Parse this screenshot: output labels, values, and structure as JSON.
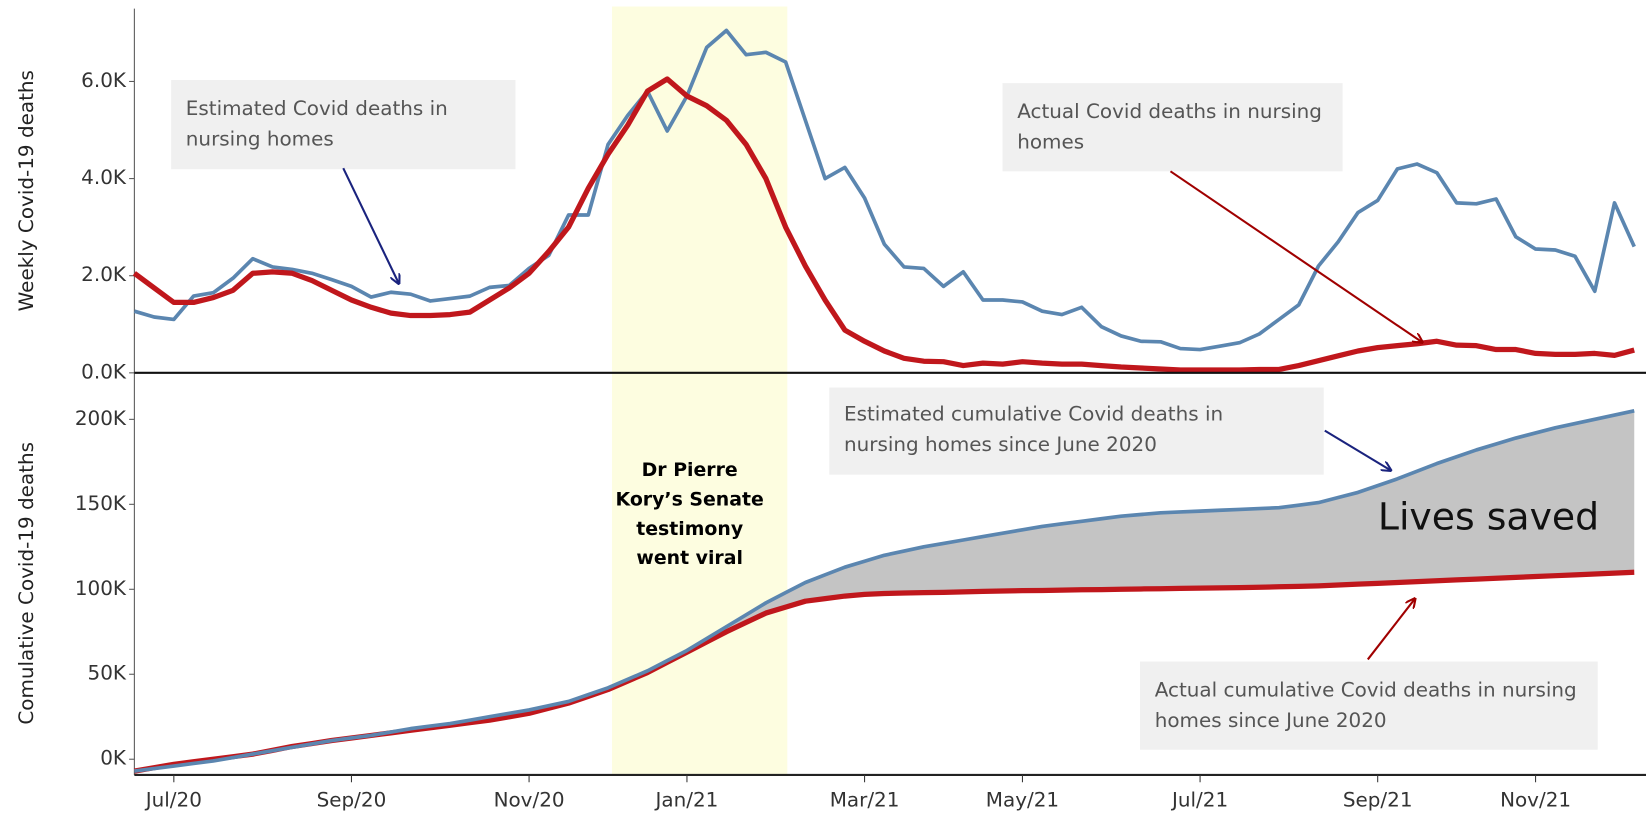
{
  "chart_data": [
    {
      "type": "line",
      "ylabel": "Weekly Covid-19 deaths",
      "ylim": [
        0,
        7500
      ],
      "yticks": [
        {
          "value": 0,
          "label": "0.0K"
        },
        {
          "value": 2000,
          "label": "2.0K"
        },
        {
          "value": 4000,
          "label": "4.0K"
        },
        {
          "value": 6000,
          "label": "6.0K"
        }
      ],
      "series": [
        {
          "name": "Estimated Covid deaths in nursing homes",
          "color": "#5b86b0",
          "values": [
            1270,
            1150,
            1100,
            1580,
            1650,
            1950,
            2350,
            2180,
            2130,
            2050,
            1920,
            1780,
            1560,
            1660,
            1620,
            1480,
            1530,
            1580,
            1760,
            1800,
            2150,
            2420,
            3250,
            3250,
            4700,
            5300,
            5800,
            4980,
            5700,
            6700,
            7050,
            6550,
            6600,
            6400,
            5200,
            4000,
            4230,
            3600,
            2650,
            2180,
            2150,
            1780,
            2080,
            1500,
            1500,
            1460,
            1270,
            1200,
            1350,
            950,
            760,
            650,
            640,
            500,
            480,
            550,
            620,
            800,
            1100,
            1400,
            2200,
            2700,
            3300,
            3550,
            4200,
            4300,
            4120,
            3500,
            3480,
            3580,
            2800,
            2550,
            2530,
            2400,
            1680,
            3500,
            2600
          ]
        },
        {
          "name": "Actual Covid deaths in nursing homes",
          "color": "#c0171c",
          "values": [
            2050,
            1750,
            1450,
            1450,
            1550,
            1700,
            2050,
            2080,
            2050,
            1900,
            1700,
            1500,
            1350,
            1230,
            1180,
            1180,
            1200,
            1250,
            1500,
            1750,
            2050,
            2500,
            3000,
            3800,
            4500,
            5100,
            5800,
            6050,
            5700,
            5500,
            5200,
            4700,
            4000,
            3000,
            2200,
            1500,
            880,
            650,
            450,
            300,
            240,
            230,
            150,
            200,
            180,
            230,
            200,
            180,
            180,
            150,
            120,
            100,
            80,
            60,
            60,
            60,
            60,
            70,
            70,
            150,
            250,
            350,
            450,
            520,
            560,
            600,
            650,
            570,
            560,
            480,
            480,
            400,
            380,
            380,
            400,
            360,
            470
          ]
        }
      ],
      "annotations": [
        {
          "lines": [
            "Estimated Covid deaths in",
            "nursing homes"
          ]
        },
        {
          "lines": [
            "Actual Covid deaths in nursing",
            "homes"
          ]
        }
      ]
    },
    {
      "type": "line",
      "ylabel": "Comulative Covid-19 deaths",
      "ylim": [
        -8000,
        215000
      ],
      "yticks": [
        {
          "value": 0,
          "label": "0K"
        },
        {
          "value": 50000,
          "label": "50K"
        },
        {
          "value": 100000,
          "label": "100K"
        },
        {
          "value": 150000,
          "label": "150K"
        },
        {
          "value": 200000,
          "label": "200K"
        }
      ],
      "categories": [
        null,
        null,
        "Jul/20",
        null,
        null,
        null,
        null,
        null,
        null,
        null,
        null,
        "Sep/20",
        null,
        null,
        null,
        null,
        null,
        null,
        null,
        null,
        "Nov/20",
        null,
        null,
        null,
        null,
        null,
        null,
        null,
        "Jan/21",
        null,
        null,
        null,
        null,
        null,
        null,
        null,
        null,
        "Mar/21",
        null,
        null,
        null,
        null,
        null,
        null,
        null,
        "May/21",
        null,
        null,
        null,
        null,
        null,
        null,
        null,
        null,
        "Jul/21",
        null,
        null,
        null,
        null,
        null,
        null,
        null,
        null,
        "Sep/21",
        null,
        null,
        null,
        null,
        null,
        null,
        null,
        "Nov/21",
        null,
        null,
        null,
        null,
        null
      ],
      "series": [
        {
          "name": "Estimated cumulative Covid deaths in nursing homes since June 2020",
          "color": "#5b86b0",
          "values": [
            -7000,
            -5500,
            -4000,
            -2500,
            -1000,
            1000,
            3000,
            5000,
            7000,
            9000,
            11000,
            12500,
            14000,
            16000,
            18000,
            19500,
            21000,
            23000,
            25000,
            27000,
            29000,
            31500,
            34000,
            38000,
            42000,
            47000,
            52000,
            58000,
            64000,
            71000,
            78000,
            85000,
            92000,
            98000,
            104000,
            108500,
            113000,
            116500,
            120000,
            122500,
            125000,
            127000,
            129000,
            131000,
            133000,
            135000,
            137000,
            138500,
            140000,
            141500,
            143000,
            144000,
            145000,
            145500,
            146000,
            146500,
            147000,
            147500,
            148000,
            149500,
            151000,
            154000,
            157000,
            161000,
            165000,
            169500,
            174000,
            178000,
            182000,
            185500,
            189000,
            192000,
            195000,
            197500,
            200000,
            202500,
            205000
          ]
        },
        {
          "name": "Actual cumulative Covid deaths in nursing homes since June 2020",
          "color": "#c0171c",
          "values": [
            -7000,
            -5000,
            -3000,
            -1500,
            0,
            1500,
            3000,
            5200,
            7500,
            9200,
            11000,
            12500,
            14000,
            15500,
            17000,
            18500,
            20000,
            21500,
            23000,
            25000,
            27000,
            30000,
            33000,
            37000,
            41000,
            46000,
            51000,
            57000,
            63000,
            69000,
            75000,
            80500,
            86000,
            89500,
            93000,
            94500,
            96000,
            97000,
            97500,
            97800,
            98000,
            98200,
            98500,
            98800,
            99000,
            99200,
            99300,
            99500,
            99700,
            99800,
            100000,
            100200,
            100300,
            100500,
            100700,
            100800,
            101000,
            101200,
            101500,
            101700,
            102000,
            102500,
            103000,
            103500,
            104000,
            104500,
            105000,
            105500,
            106000,
            106500,
            107000,
            107500,
            108000,
            108500,
            109000,
            109500,
            110000
          ]
        }
      ],
      "annotations": [
        {
          "lines": [
            "Estimated cumulative Covid deaths in",
            "nursing homes since June 2020"
          ]
        },
        {
          "lines": [
            "Actual cumulative Covid deaths in nursing",
            "homes since June 2020"
          ]
        },
        {
          "lines": [
            "Dr Pierre",
            "Kory’s Senate",
            "testimony",
            "went viral"
          ]
        },
        {
          "lines": [
            "Lives saved"
          ]
        }
      ],
      "fill_between": {
        "color": "#c4c4c4"
      }
    }
  ]
}
